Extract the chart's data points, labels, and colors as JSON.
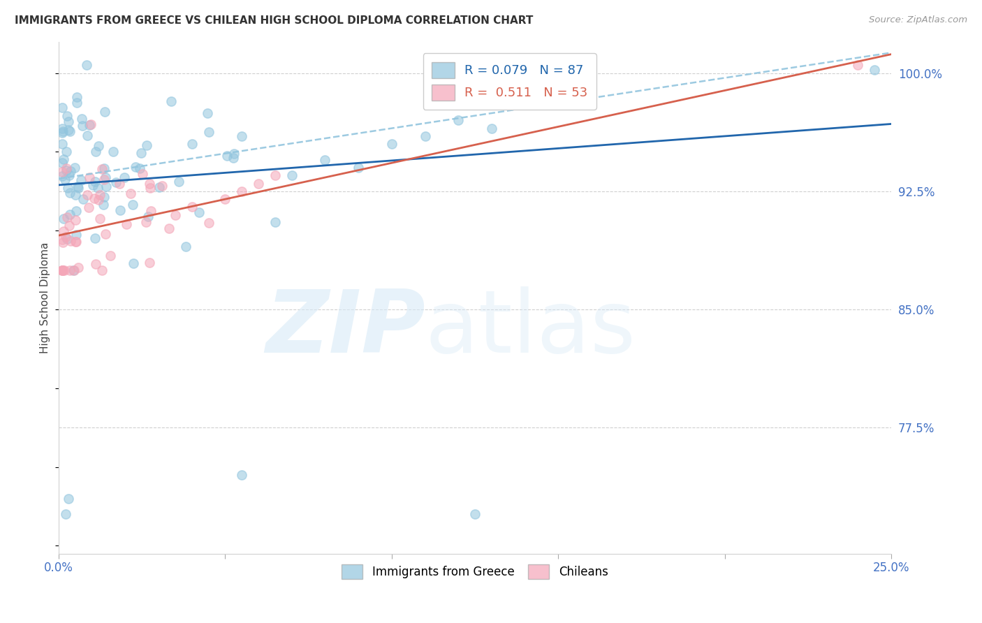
{
  "title": "IMMIGRANTS FROM GREECE VS CHILEAN HIGH SCHOOL DIPLOMA CORRELATION CHART",
  "source": "Source: ZipAtlas.com",
  "ylabel": "High School Diploma",
  "yticks": [
    0.775,
    0.85,
    0.925,
    1.0
  ],
  "ytick_labels": [
    "77.5%",
    "85.0%",
    "92.5%",
    "100.0%"
  ],
  "xlim": [
    0.0,
    0.25
  ],
  "ylim": [
    0.695,
    1.02
  ],
  "legend_blue_r": "0.079",
  "legend_blue_n": "87",
  "legend_pink_r": "0.511",
  "legend_pink_n": "53",
  "blue_color": "#92c5de",
  "pink_color": "#f4a6b8",
  "trend_blue_color": "#2166ac",
  "trend_pink_color": "#d6604d",
  "trend_dashed_color": "#92c5de",
  "axis_color": "#4472c4",
  "background_color": "#ffffff",
  "grid_color": "#d0d0d0",
  "blue_marker_size": 90,
  "pink_marker_size": 90
}
